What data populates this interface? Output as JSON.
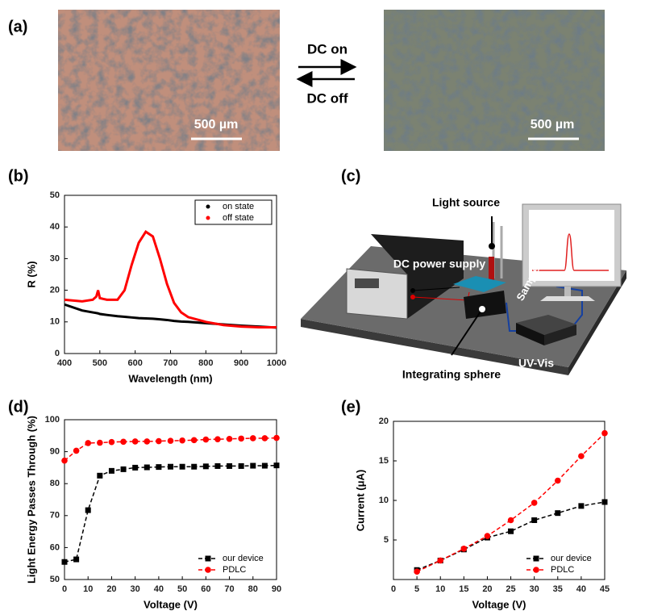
{
  "panel_a": {
    "label": "(a)",
    "arrow_top": "DC on",
    "arrow_bottom": "DC off",
    "scale_left": "500 µm",
    "scale_right": "500 µm"
  },
  "panel_c": {
    "label": "(c)",
    "labels": [
      "Light source",
      "DC power supply",
      "Sample",
      "UV-Vis",
      "Integrating sphere"
    ]
  },
  "chart_data": [
    {
      "type": "line",
      "panel_label": "(b)",
      "xlabel": "Wavelength (nm)",
      "ylabel": "R (%)",
      "x": [
        400,
        450,
        480,
        490,
        495,
        500,
        520,
        550,
        570,
        590,
        610,
        630,
        650,
        670,
        690,
        710,
        730,
        750,
        800,
        850,
        900,
        950,
        1000
      ],
      "series": [
        {
          "name": "on state",
          "color": "#000000",
          "values": [
            15.5,
            13.6,
            13,
            12.8,
            12.7,
            12.5,
            12.2,
            11.8,
            11.6,
            11.4,
            11.2,
            11.1,
            11,
            10.8,
            10.6,
            10.3,
            10.1,
            10,
            9.6,
            9.2,
            8.8,
            8.5,
            8.2
          ]
        },
        {
          "name": "off state",
          "color": "#ff0000",
          "values": [
            17,
            16.5,
            17,
            18,
            20,
            17.5,
            17,
            17,
            20,
            28,
            35,
            38.5,
            37,
            30,
            22,
            16,
            13,
            11.5,
            10,
            9,
            8.5,
            8.3,
            8.3
          ]
        }
      ],
      "xlim": [
        400,
        1000
      ],
      "xticks": [
        400,
        500,
        600,
        700,
        800,
        900,
        1000
      ],
      "ylim": [
        0,
        50
      ],
      "yticks": [
        0,
        10,
        20,
        30,
        40,
        50
      ],
      "legend": "upper right"
    },
    {
      "type": "line",
      "panel_label": "(d)",
      "xlabel": "Voltage (V)",
      "ylabel": "Light Energy Passes Through (%)",
      "x": [
        0,
        5,
        10,
        15,
        20,
        25,
        30,
        35,
        40,
        45,
        50,
        55,
        60,
        65,
        70,
        75,
        80,
        85,
        90
      ],
      "series": [
        {
          "name": "our device",
          "color": "#000000",
          "marker": "square",
          "linestyle": "dashed",
          "values": [
            55.5,
            56.3,
            71.7,
            82.5,
            84,
            84.5,
            85,
            85.1,
            85.2,
            85.3,
            85.3,
            85.3,
            85.4,
            85.5,
            85.5,
            85.5,
            85.6,
            85.6,
            85.7
          ]
        },
        {
          "name": "PDLC",
          "color": "#ff0000",
          "marker": "circle",
          "linestyle": "dashed",
          "values": [
            87.2,
            90.3,
            92.7,
            92.8,
            93,
            93.1,
            93.2,
            93.2,
            93.3,
            93.4,
            93.5,
            93.6,
            93.8,
            93.9,
            94,
            94.1,
            94.2,
            94.2,
            94.3
          ]
        }
      ],
      "xlim": [
        0,
        90
      ],
      "xticks": [
        0,
        10,
        20,
        30,
        40,
        50,
        60,
        70,
        80,
        90
      ],
      "ylim": [
        50,
        100
      ],
      "yticks": [
        50,
        60,
        70,
        80,
        90,
        100
      ],
      "legend": "lower right"
    },
    {
      "type": "scatter",
      "panel_label": "(e)",
      "xlabel": "Voltage (V)",
      "ylabel": "Current (μA)",
      "x": [
        5,
        10,
        15,
        20,
        25,
        30,
        35,
        40,
        45
      ],
      "series": [
        {
          "name": "our device",
          "color": "#000000",
          "marker": "square",
          "linestyle": "dashed",
          "values": [
            1.2,
            2.4,
            3.8,
            5.3,
            6.1,
            7.5,
            8.4,
            9.3,
            9.8
          ]
        },
        {
          "name": "PDLC",
          "color": "#ff0000",
          "marker": "circle",
          "linestyle": "dashed",
          "values": [
            1.0,
            2.4,
            3.9,
            5.5,
            7.5,
            9.7,
            12.5,
            15.6,
            18.5
          ]
        }
      ],
      "xlim": [
        0,
        45
      ],
      "xticks": [
        0,
        5,
        10,
        15,
        20,
        25,
        30,
        35,
        40,
        45
      ],
      "ylim": [
        0,
        20
      ],
      "yticks": [
        5,
        10,
        15,
        20
      ],
      "legend": "lower right"
    }
  ]
}
